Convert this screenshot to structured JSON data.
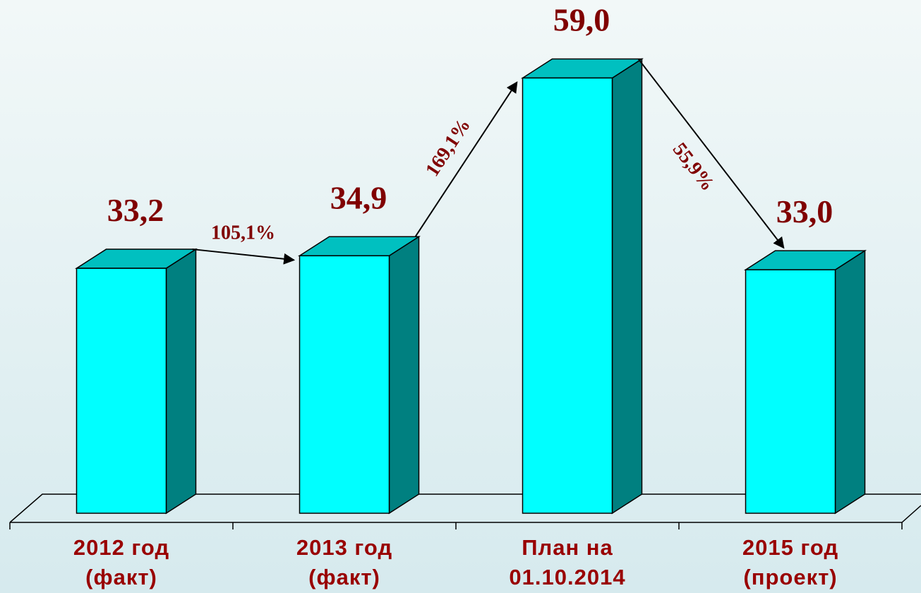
{
  "chart_data": {
    "type": "bar3d",
    "categories": [
      "2012 год\n(факт)",
      "2013 год\n(факт)",
      "План на\n01.10.2014",
      "2015 год\n(проект)"
    ],
    "values": [
      33.2,
      34.9,
      59.0,
      33.0
    ],
    "value_labels": [
      "33,2",
      "34,9",
      "59,0",
      "33,0"
    ],
    "annotations": [
      "105,1%",
      "169,1%",
      "55,9%"
    ],
    "color": "#00ffff",
    "ylim": [
      0,
      60
    ]
  }
}
